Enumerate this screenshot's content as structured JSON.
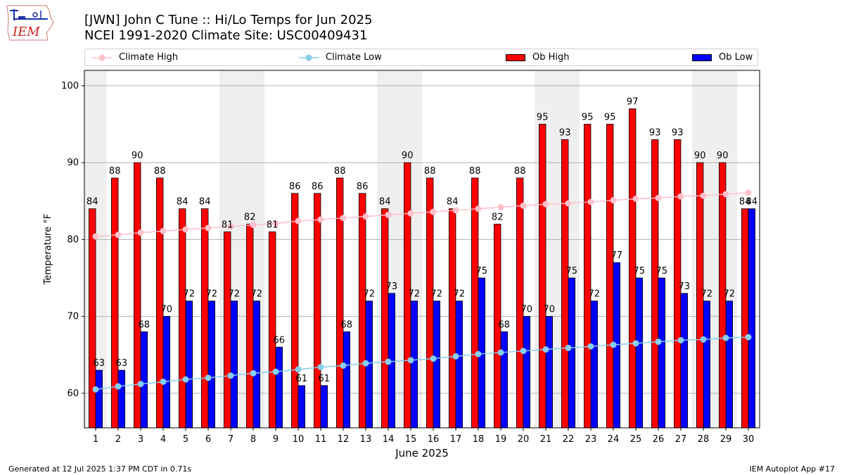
{
  "header": {
    "logo_text": "IEM",
    "title_line1": "[JWN] John C Tune :: Hi/Lo Temps for Jun 2025",
    "title_line2": "NCEI 1991-2020 Climate Site: USC00409431"
  },
  "legend": {
    "climate_high": "Climate High",
    "climate_low": "Climate Low",
    "ob_high": "Ob High",
    "ob_low": "Ob Low"
  },
  "colors": {
    "ob_high": "#ff0000",
    "ob_low": "#0000ff",
    "climate_high": "#ffc0cb",
    "climate_low": "#87ceeb",
    "weekend_shade": "#efefef"
  },
  "footer": {
    "left": "Generated at 12 Jul 2025 1:37 PM CDT in 0.71s",
    "right": "IEM Autoplot App #17"
  },
  "chart_data": {
    "type": "bar",
    "xlabel": "June 2025",
    "ylabel": "Temperature °F",
    "ylim": [
      55.5,
      102
    ],
    "yticks": [
      60,
      70,
      80,
      90,
      100
    ],
    "grid": true,
    "legend_position": "top",
    "categories": [
      "1",
      "2",
      "3",
      "4",
      "5",
      "6",
      "7",
      "8",
      "9",
      "10",
      "11",
      "12",
      "13",
      "14",
      "15",
      "16",
      "17",
      "18",
      "19",
      "20",
      "21",
      "22",
      "23",
      "24",
      "25",
      "26",
      "27",
      "28",
      "29",
      "30"
    ],
    "shaded_days": [
      1,
      7,
      8,
      14,
      15,
      21,
      22,
      28,
      29
    ],
    "series": [
      {
        "name": "Ob High",
        "kind": "bar",
        "labeled": true,
        "values": [
          84,
          88,
          90,
          88,
          84,
          84,
          81,
          82,
          81,
          86,
          86,
          88,
          86,
          84,
          90,
          88,
          84,
          88,
          82,
          88,
          95,
          93,
          95,
          95,
          97,
          93,
          93,
          90,
          90,
          84
        ]
      },
      {
        "name": "Ob Low",
        "kind": "bar",
        "labeled": true,
        "values": [
          63,
          63,
          68,
          70,
          72,
          72,
          72,
          72,
          66,
          61,
          61,
          68,
          72,
          73,
          72,
          72,
          72,
          75,
          68,
          70,
          70,
          75,
          72,
          77,
          75,
          75,
          73,
          72,
          72,
          84
        ]
      },
      {
        "name": "Climate High",
        "kind": "line",
        "values": [
          80.4,
          80.6,
          80.9,
          81.1,
          81.3,
          81.5,
          81.7,
          81.9,
          82.1,
          82.4,
          82.6,
          82.8,
          83.0,
          83.2,
          83.4,
          83.6,
          83.8,
          84.0,
          84.2,
          84.4,
          84.6,
          84.7,
          84.9,
          85.1,
          85.3,
          85.4,
          85.6,
          85.7,
          85.9,
          86.1
        ]
      },
      {
        "name": "Climate Low",
        "kind": "line",
        "values": [
          60.5,
          60.9,
          61.2,
          61.5,
          61.8,
          62.0,
          62.3,
          62.6,
          62.8,
          63.1,
          63.4,
          63.6,
          63.9,
          64.1,
          64.3,
          64.5,
          64.8,
          65.1,
          65.3,
          65.5,
          65.7,
          65.9,
          66.1,
          66.3,
          66.5,
          66.7,
          66.9,
          67.0,
          67.2,
          67.3
        ]
      }
    ]
  }
}
